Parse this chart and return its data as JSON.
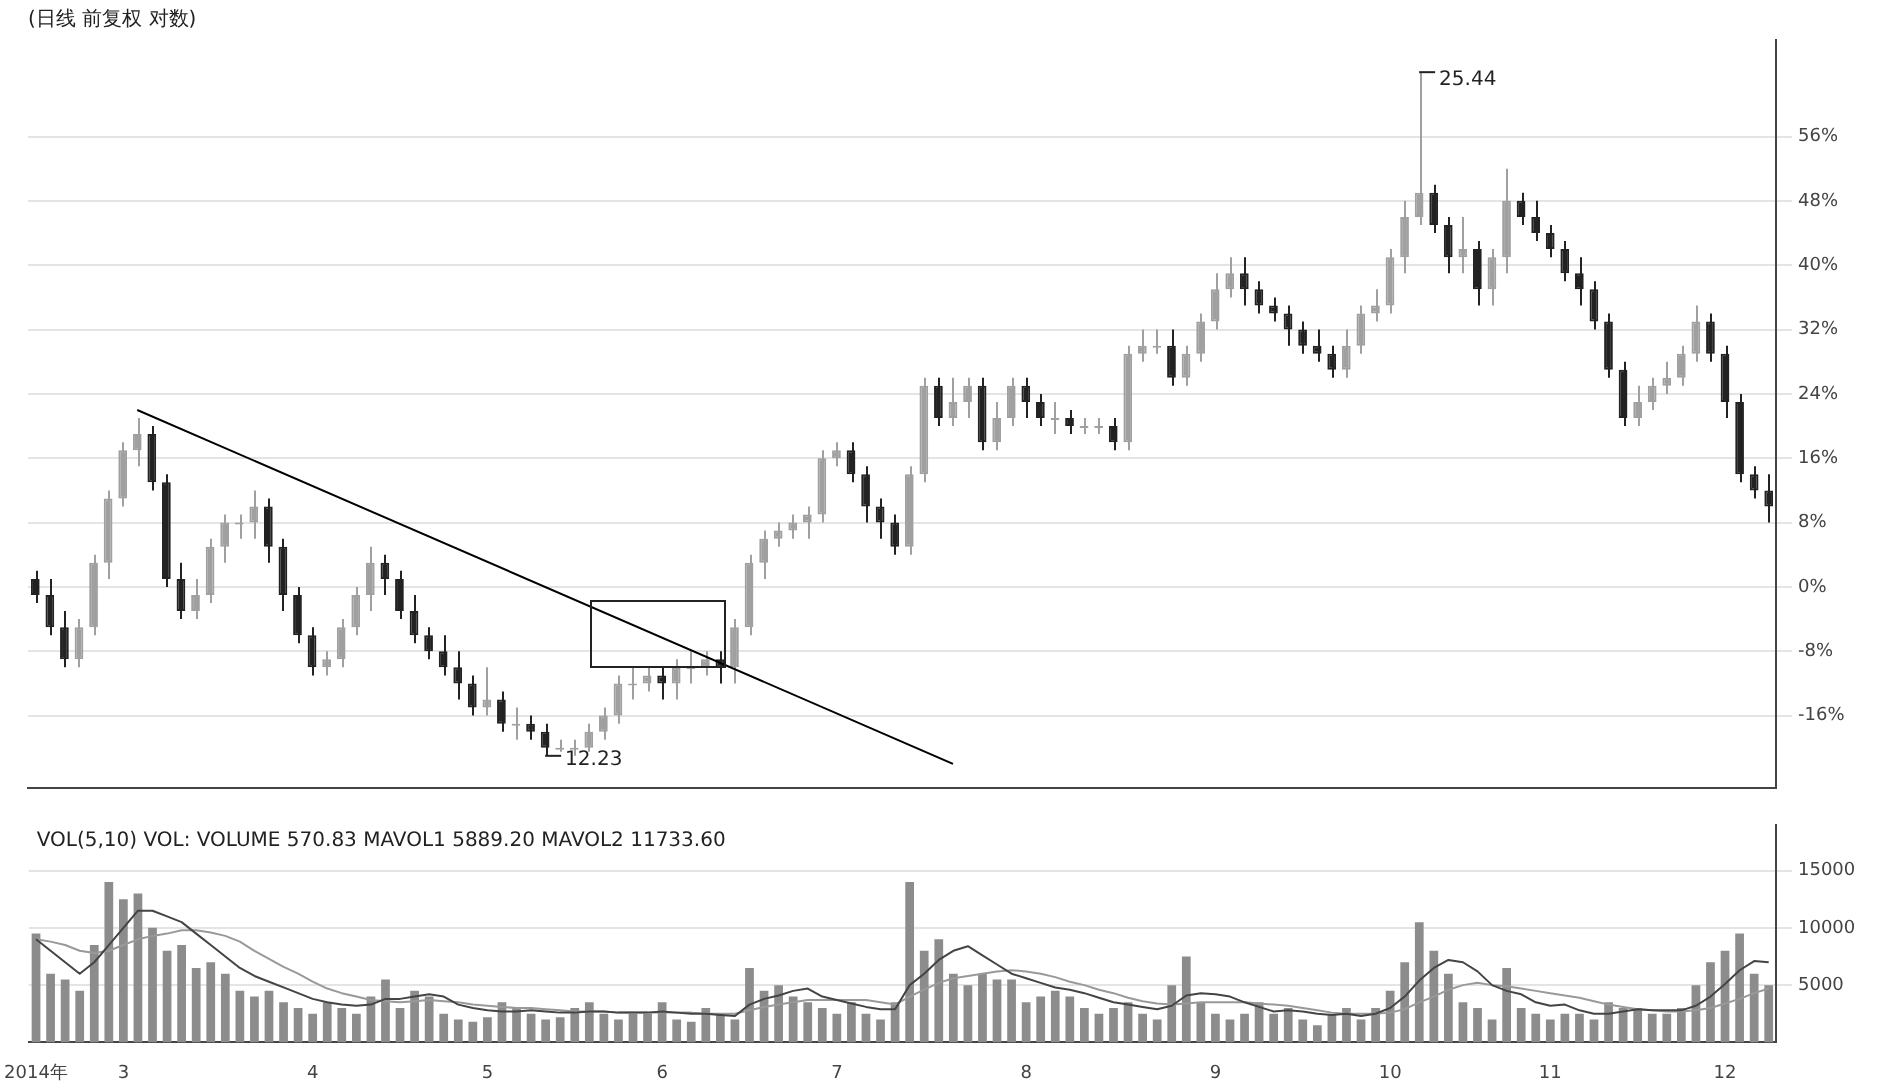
{
  "chart_data": [
    {
      "type": "candlestick",
      "title": "(日线 前复权 对数)",
      "grid": "y",
      "tick_labels": "y",
      "categories": [
        null,
        null,
        null,
        null,
        null,
        null,
        null,
        null,
        null,
        null,
        null,
        null,
        null,
        null,
        null,
        null,
        null,
        null,
        null,
        null,
        null,
        null,
        null,
        null,
        null,
        null,
        null,
        null,
        null,
        null,
        null,
        null,
        null,
        null,
        null,
        null,
        null,
        null,
        null,
        null,
        null,
        null,
        null,
        null,
        null,
        null,
        null,
        null,
        null,
        null,
        null,
        null,
        null,
        null,
        null,
        null,
        null,
        null,
        null,
        null,
        null,
        null,
        null,
        null,
        null,
        null,
        null,
        null,
        null,
        null,
        null,
        null,
        null,
        null,
        null,
        null,
        null,
        null,
        null,
        null,
        null,
        null,
        null,
        null,
        null,
        null,
        null,
        null,
        null,
        null,
        null,
        null,
        null,
        null,
        null,
        null,
        null,
        null,
        null,
        null,
        null,
        null,
        null,
        null,
        null,
        null,
        null,
        null,
        null,
        null,
        null,
        null,
        null,
        null,
        null,
        null,
        null,
        null,
        null,
        null
      ],
      "ohlc": [
        [
          1,
          2,
          -2,
          -1
        ],
        [
          -1,
          1,
          -6,
          -5
        ],
        [
          -5,
          -3,
          -10,
          -9
        ],
        [
          -9,
          -4,
          -10,
          -5
        ],
        [
          -5,
          4,
          -6,
          3
        ],
        [
          3,
          12,
          1,
          11
        ],
        [
          11,
          18,
          10,
          17
        ],
        [
          17,
          21,
          15,
          19
        ],
        [
          19,
          20,
          12,
          13
        ],
        [
          13,
          14,
          0,
          1
        ],
        [
          1,
          3,
          -4,
          -3
        ],
        [
          -3,
          1,
          -4,
          -1
        ],
        [
          -1,
          6,
          -2,
          5
        ],
        [
          5,
          9,
          3,
          8
        ],
        [
          8,
          9,
          6,
          8
        ],
        [
          8,
          12,
          6,
          10
        ],
        [
          10,
          11,
          3,
          5
        ],
        [
          5,
          6,
          -3,
          -1
        ],
        [
          -1,
          0,
          -7,
          -6
        ],
        [
          -6,
          -5,
          -11,
          -10
        ],
        [
          -10,
          -8,
          -11,
          -9
        ],
        [
          -9,
          -4,
          -10,
          -5
        ],
        [
          -5,
          0,
          -6,
          -1
        ],
        [
          -1,
          5,
          -3,
          3
        ],
        [
          3,
          4,
          -1,
          1
        ],
        [
          1,
          2,
          -4,
          -3
        ],
        [
          -3,
          -1,
          -7,
          -6
        ],
        [
          -6,
          -5,
          -9,
          -8
        ],
        [
          -8,
          -6,
          -11,
          -10
        ],
        [
          -10,
          -8,
          -14,
          -12
        ],
        [
          -12,
          -11,
          -16,
          -15
        ],
        [
          -15,
          -10,
          -16,
          -14
        ],
        [
          -14,
          -13,
          -18,
          -17
        ],
        [
          -17,
          -15,
          -19,
          -17
        ],
        [
          -17,
          -16,
          -19,
          -18
        ],
        [
          -18,
          -17,
          -21,
          -20
        ],
        [
          -20,
          -19,
          -20.5,
          -20
        ],
        [
          -20,
          -19,
          -21,
          -20
        ],
        [
          -20,
          -17,
          -20.5,
          -18
        ],
        [
          -18,
          -15,
          -19,
          -16
        ],
        [
          -16,
          -11,
          -17,
          -12
        ],
        [
          -12,
          -10,
          -14,
          -12
        ],
        [
          -12,
          -10,
          -13,
          -11
        ],
        [
          -11,
          -10,
          -14,
          -12
        ],
        [
          -12,
          -9,
          -14,
          -10
        ],
        [
          -10,
          -8,
          -12,
          -10
        ],
        [
          -10,
          -8,
          -11,
          -9
        ],
        [
          -9,
          -8,
          -12,
          -10
        ],
        [
          -10,
          -4,
          -12,
          -5
        ],
        [
          -5,
          4,
          -6,
          3
        ],
        [
          3,
          7,
          1,
          6
        ],
        [
          6,
          8,
          5,
          7
        ],
        [
          7,
          9,
          6,
          8
        ],
        [
          8,
          10,
          6,
          9
        ],
        [
          9,
          17,
          8,
          16
        ],
        [
          16,
          18,
          15,
          17
        ],
        [
          17,
          18,
          13,
          14
        ],
        [
          14,
          15,
          8,
          10
        ],
        [
          10,
          11,
          6,
          8
        ],
        [
          8,
          9,
          4,
          5
        ],
        [
          5,
          15,
          4,
          14
        ],
        [
          14,
          26,
          13,
          25
        ],
        [
          25,
          26,
          20,
          21
        ],
        [
          21,
          26,
          20,
          23
        ],
        [
          23,
          26,
          21,
          25
        ],
        [
          25,
          26,
          17,
          18
        ],
        [
          18,
          23,
          17,
          21
        ],
        [
          21,
          26,
          20,
          25
        ],
        [
          25,
          26,
          21,
          23
        ],
        [
          23,
          24,
          20,
          21
        ],
        [
          21,
          23,
          19,
          21
        ],
        [
          21,
          22,
          19,
          20
        ],
        [
          20,
          21,
          19,
          20
        ],
        [
          20,
          21,
          19,
          20
        ],
        [
          20,
          21,
          17,
          18
        ],
        [
          18,
          30,
          17,
          29
        ],
        [
          29,
          32,
          28,
          30
        ],
        [
          30,
          32,
          29,
          30
        ],
        [
          30,
          32,
          25,
          26
        ],
        [
          26,
          30,
          25,
          29
        ],
        [
          29,
          34,
          28,
          33
        ],
        [
          33,
          39,
          32,
          37
        ],
        [
          37,
          41,
          36,
          39
        ],
        [
          39,
          41,
          35,
          37
        ],
        [
          37,
          38,
          34,
          35
        ],
        [
          35,
          36,
          33,
          34
        ],
        [
          34,
          35,
          30,
          32
        ],
        [
          32,
          33,
          29,
          30
        ],
        [
          30,
          32,
          28,
          29
        ],
        [
          29,
          30,
          26,
          27
        ],
        [
          27,
          32,
          26,
          30
        ],
        [
          30,
          35,
          29,
          34
        ],
        [
          34,
          37,
          33,
          35
        ],
        [
          35,
          42,
          34,
          41
        ],
        [
          41,
          48,
          39,
          46
        ],
        [
          46,
          64,
          45,
          49
        ],
        [
          49,
          50,
          44,
          45
        ],
        [
          45,
          46,
          39,
          41
        ],
        [
          41,
          46,
          39,
          42
        ],
        [
          42,
          43,
          35,
          37
        ],
        [
          37,
          42,
          35,
          41
        ],
        [
          41,
          52,
          39,
          48
        ],
        [
          48,
          49,
          45,
          46
        ],
        [
          46,
          48,
          43,
          44
        ],
        [
          44,
          45,
          41,
          42
        ],
        [
          42,
          43,
          38,
          39
        ],
        [
          39,
          41,
          35,
          37
        ],
        [
          37,
          38,
          32,
          33
        ],
        [
          33,
          34,
          26,
          27
        ],
        [
          27,
          28,
          20,
          21
        ],
        [
          21,
          25,
          20,
          23
        ],
        [
          23,
          26,
          22,
          25
        ],
        [
          25,
          28,
          24,
          26
        ],
        [
          26,
          30,
          25,
          29
        ],
        [
          29,
          35,
          28,
          33
        ],
        [
          33,
          34,
          28,
          29
        ],
        [
          29,
          30,
          21,
          23
        ],
        [
          23,
          24,
          13,
          14
        ],
        [
          14,
          15,
          11,
          12
        ],
        [
          12,
          14,
          8,
          10
        ]
      ],
      "colors": [
        "#222222",
        "#222222",
        "#222222",
        "#a0a0a0",
        "#a0a0a0",
        "#a0a0a0",
        "#a0a0a0",
        "#a0a0a0",
        "#222222",
        "#222222",
        "#222222",
        "#a0a0a0",
        "#a0a0a0",
        "#a0a0a0",
        "#a0a0a0",
        "#a0a0a0",
        "#222222",
        "#222222",
        "#222222",
        "#222222",
        "#a0a0a0",
        "#a0a0a0",
        "#a0a0a0",
        "#a0a0a0",
        "#222222",
        "#222222",
        "#222222",
        "#222222",
        "#222222",
        "#222222",
        "#222222",
        "#a0a0a0",
        "#222222",
        "#a0a0a0",
        "#222222",
        "#222222",
        "#a0a0a0",
        "#a0a0a0",
        "#a0a0a0",
        "#a0a0a0",
        "#a0a0a0",
        "#a0a0a0",
        "#a0a0a0",
        "#222222",
        "#a0a0a0",
        "#a0a0a0",
        "#a0a0a0",
        "#222222",
        "#a0a0a0",
        "#a0a0a0",
        "#a0a0a0",
        "#a0a0a0",
        "#a0a0a0",
        "#a0a0a0",
        "#a0a0a0",
        "#a0a0a0",
        "#222222",
        "#222222",
        "#222222",
        "#222222",
        "#a0a0a0",
        "#a0a0a0",
        "#222222",
        "#a0a0a0",
        "#a0a0a0",
        "#222222",
        "#a0a0a0",
        "#a0a0a0",
        "#222222",
        "#222222",
        "#a0a0a0",
        "#222222",
        "#a0a0a0",
        "#a0a0a0",
        "#222222",
        "#a0a0a0",
        "#a0a0a0",
        "#a0a0a0",
        "#222222",
        "#a0a0a0",
        "#a0a0a0",
        "#a0a0a0",
        "#a0a0a0",
        "#222222",
        "#222222",
        "#222222",
        "#222222",
        "#222222",
        "#222222",
        "#222222",
        "#a0a0a0",
        "#a0a0a0",
        "#a0a0a0",
        "#a0a0a0",
        "#a0a0a0",
        "#a0a0a0",
        "#222222",
        "#222222",
        "#a0a0a0",
        "#222222",
        "#a0a0a0",
        "#a0a0a0",
        "#222222",
        "#222222",
        "#222222",
        "#222222",
        "#222222",
        "#222222",
        "#222222",
        "#222222",
        "#a0a0a0",
        "#a0a0a0",
        "#a0a0a0",
        "#a0a0a0",
        "#a0a0a0",
        "#222222",
        "#222222",
        "#222222",
        "#222222",
        "#222222"
      ],
      "series": [
        {
          "type": "line",
          "color": "#000000",
          "values": [
            null,
            null,
            null,
            null,
            null,
            null,
            null,
            22,
            null,
            null,
            null,
            null,
            null,
            null,
            null,
            null,
            null,
            null,
            null,
            null,
            null,
            null,
            null,
            null,
            null,
            null,
            null,
            null,
            null,
            null,
            null,
            null,
            null,
            null,
            null,
            null,
            null,
            null,
            null,
            null,
            null,
            null,
            null,
            null,
            null,
            null,
            null,
            null,
            null,
            null,
            null,
            null,
            null,
            null,
            null,
            null,
            null,
            null,
            null,
            null,
            null,
            null,
            null,
            -22,
            null,
            null,
            null,
            null,
            null,
            null,
            null,
            null,
            null,
            null,
            null,
            null,
            null,
            null,
            null,
            null,
            null,
            null,
            null,
            null,
            null,
            null,
            null,
            null,
            null,
            null,
            null,
            null,
            null,
            null,
            null,
            null,
            null,
            null,
            null,
            null,
            null,
            null,
            null,
            null,
            null,
            null,
            null,
            null,
            null,
            null,
            null,
            null,
            null,
            null,
            null,
            null,
            null,
            null,
            null,
            null
          ]
        }
      ],
      "ylim": [
        -25,
        68
      ],
      "yticks": [
        {
          "value": 56,
          "label": "56%"
        },
        {
          "value": 48,
          "label": "48%"
        },
        {
          "value": 40,
          "label": "40%"
        },
        {
          "value": 32,
          "label": "32%"
        },
        {
          "value": 24,
          "label": "24%"
        },
        {
          "value": 16,
          "label": "16%"
        },
        {
          "value": 8,
          "label": "8%"
        },
        {
          "value": 0,
          "label": "0%"
        },
        {
          "value": -8,
          "label": "-8%"
        },
        {
          "value": -16,
          "label": "-16%"
        }
      ],
      "annotations": [
        "25.44",
        "12.23"
      ]
    },
    {
      "type": "bar",
      "grid": "y",
      "categories": [
        "2014年",
        null,
        null,
        null,
        null,
        null,
        "3",
        null,
        null,
        null,
        null,
        null,
        null,
        null,
        null,
        null,
        null,
        null,
        null,
        "4",
        null,
        null,
        null,
        null,
        null,
        null,
        null,
        null,
        null,
        null,
        null,
        "5",
        null,
        null,
        null,
        null,
        null,
        null,
        null,
        null,
        null,
        null,
        null,
        "6",
        null,
        null,
        null,
        null,
        null,
        null,
        null,
        null,
        null,
        null,
        null,
        "7",
        null,
        null,
        null,
        null,
        null,
        null,
        null,
        null,
        null,
        null,
        null,
        null,
        "8",
        null,
        null,
        null,
        null,
        null,
        null,
        null,
        null,
        null,
        null,
        null,
        null,
        "9",
        null,
        null,
        null,
        null,
        null,
        null,
        null,
        null,
        null,
        null,
        null,
        "10",
        null,
        null,
        null,
        null,
        null,
        null,
        null,
        null,
        null,
        null,
        "11",
        null,
        null,
        null,
        null,
        null,
        null,
        null,
        null,
        null,
        null,
        null,
        "12",
        null,
        null,
        null
      ],
      "series": [
        {
          "type": "bar",
          "color": "#8c8c8c",
          "values": [
            9500,
            6000,
            5500,
            4500,
            8500,
            14000,
            12500,
            13000,
            10000,
            8000,
            8500,
            6500,
            7000,
            6000,
            4500,
            4000,
            4500,
            3500,
            3000,
            2500,
            3500,
            3000,
            2500,
            4000,
            5500,
            3000,
            4500,
            4000,
            2500,
            2000,
            1800,
            2200,
            3500,
            3000,
            2500,
            2000,
            2200,
            3000,
            3500,
            2500,
            2000,
            2500,
            2500,
            3500,
            2000,
            1800,
            3000,
            2500,
            2000,
            6500,
            4500,
            5000,
            4000,
            3500,
            3000,
            2500,
            3500,
            2500,
            2000,
            3500,
            14000,
            8000,
            9000,
            6000,
            5000,
            6000,
            5500,
            5500,
            3500,
            4000,
            4500,
            4000,
            3000,
            2500,
            3000,
            3500,
            2500,
            2000,
            5000,
            7500,
            3500,
            2500,
            2000,
            2500,
            3500,
            2500,
            3000,
            2000,
            1500,
            2500,
            3000,
            2000,
            3000,
            4500,
            7000,
            10500,
            8000,
            6000,
            3500,
            3000,
            2000,
            6500,
            3000,
            2500,
            2000,
            2500,
            2500,
            2000,
            3500,
            3000,
            3000,
            2500,
            2500,
            3000,
            5000,
            7000,
            8000,
            9500,
            6000,
            5000
          ]
        },
        {
          "type": "line",
          "color": "#444444",
          "values": [
            9000,
            8000,
            7000,
            6000,
            7000,
            8500,
            10000,
            11500,
            11500,
            11000,
            10500,
            9500,
            8500,
            7500,
            6500,
            5800,
            5300,
            4800,
            4300,
            3800,
            3500,
            3300,
            3200,
            3300,
            3800,
            3800,
            4000,
            4200,
            4000,
            3300,
            3000,
            2800,
            2700,
            2700,
            2800,
            2700,
            2600,
            2600,
            2700,
            2700,
            2600,
            2600,
            2600,
            2700,
            2600,
            2500,
            2500,
            2400,
            2300,
            3300,
            3800,
            4100,
            4500,
            4700,
            4000,
            3700,
            3400,
            3100,
            2900,
            2900,
            5000,
            6000,
            7200,
            8000,
            8400,
            7600,
            6800,
            6000,
            5600,
            5200,
            4800,
            4600,
            4300,
            3900,
            3500,
            3300,
            3100,
            2900,
            3200,
            4100,
            4300,
            4200,
            4000,
            3500,
            3100,
            2700,
            2800,
            2700,
            2500,
            2400,
            2500,
            2300,
            2500,
            3000,
            4000,
            5400,
            6500,
            7200,
            7000,
            6200,
            5000,
            4500,
            4200,
            3500,
            3200,
            3300,
            2800,
            2500,
            2500,
            2700,
            2900,
            2800,
            2800,
            2800,
            3200,
            4000,
            5100,
            6300,
            7100,
            7000
          ]
        },
        {
          "type": "line",
          "color": "#999999",
          "values": [
            9000,
            8800,
            8500,
            8000,
            7800,
            8000,
            8500,
            9000,
            9300,
            9500,
            9800,
            9800,
            9600,
            9300,
            8800,
            8000,
            7300,
            6600,
            6000,
            5300,
            4700,
            4300,
            4000,
            3700,
            3600,
            3500,
            3600,
            3700,
            3600,
            3500,
            3300,
            3200,
            3100,
            3000,
            3000,
            2900,
            2800,
            2700,
            2700,
            2700,
            2600,
            2600,
            2600,
            2600,
            2600,
            2600,
            2500,
            2500,
            2500,
            2800,
            3100,
            3300,
            3500,
            3700,
            3700,
            3700,
            3700,
            3700,
            3500,
            3300,
            4000,
            4600,
            5200,
            5600,
            5800,
            6000,
            6200,
            6300,
            6200,
            6000,
            5700,
            5300,
            5000,
            4600,
            4300,
            3900,
            3600,
            3400,
            3300,
            3400,
            3500,
            3500,
            3500,
            3500,
            3400,
            3300,
            3200,
            3000,
            2800,
            2600,
            2500,
            2500,
            2500,
            2600,
            2900,
            3500,
            4000,
            4600,
            5000,
            5200,
            5000,
            4900,
            4700,
            4500,
            4300,
            4100,
            3900,
            3600,
            3300,
            3100,
            2900,
            2800,
            2700,
            2700,
            2800,
            3000,
            3400,
            3800,
            4300,
            4700
          ]
        }
      ],
      "ylim": [
        0,
        19000
      ],
      "yticks": [
        5000,
        10000,
        15000
      ],
      "annotations": [
        "VOL(5,10) VOL: VOLUME 570.83 MAVOL1 5889.20 MAVOL2 11733.60"
      ]
    }
  ]
}
